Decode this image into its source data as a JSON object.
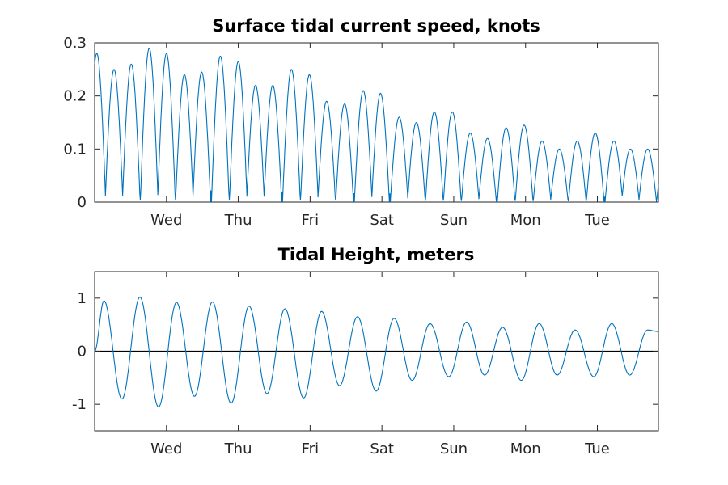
{
  "chart_data": [
    {
      "type": "line",
      "title": "Surface tidal current speed, knots",
      "xlabel": "",
      "ylabel": "",
      "ylim": [
        0,
        0.3
      ],
      "xlim": [
        0,
        7.85
      ],
      "ytick_labels": [
        "0",
        "0.1",
        "0.2",
        "0.3"
      ],
      "ytick_values": [
        0,
        0.1,
        0.2,
        0.3
      ],
      "xtick_labels": [
        "Wed",
        "Thu",
        "Fri",
        "Sat",
        "Sun",
        "Mon",
        "Tue"
      ],
      "xtick_values": [
        1,
        2,
        3,
        4,
        5,
        6,
        7
      ],
      "series_color": "#0072BD",
      "peaks": {
        "x": [
          0.03,
          0.27,
          0.51,
          0.76,
          1.0,
          1.25,
          1.49,
          1.75,
          2.0,
          2.24,
          2.48,
          2.74,
          2.99,
          3.23,
          3.48,
          3.74,
          3.98,
          4.24,
          4.48,
          4.73,
          4.98,
          5.23,
          5.47,
          5.73,
          5.98,
          6.23,
          6.47,
          6.72,
          6.97,
          7.23,
          7.46,
          7.7
        ],
        "y": [
          0.28,
          0.25,
          0.26,
          0.29,
          0.28,
          0.24,
          0.245,
          0.275,
          0.265,
          0.22,
          0.22,
          0.25,
          0.24,
          0.19,
          0.185,
          0.21,
          0.205,
          0.16,
          0.15,
          0.17,
          0.17,
          0.13,
          0.12,
          0.14,
          0.145,
          0.115,
          0.1,
          0.115,
          0.13,
          0.115,
          0.1,
          0.1
        ]
      }
    },
    {
      "type": "line",
      "title": "Tidal Height, meters",
      "xlabel": "",
      "ylabel": "",
      "ylim": [
        -1.5,
        1.5
      ],
      "xlim": [
        0,
        7.85
      ],
      "ytick_labels": [
        "-1",
        "0",
        "1"
      ],
      "ytick_values": [
        -1,
        0,
        1
      ],
      "xtick_labels": [
        "Wed",
        "Thu",
        "Fri",
        "Sat",
        "Sun",
        "Mon",
        "Tue"
      ],
      "xtick_values": [
        1,
        2,
        3,
        4,
        5,
        6,
        7
      ],
      "series_color": "#0072BD",
      "zero_line": true,
      "extrema": {
        "x": [
          0.0,
          0.13,
          0.38,
          0.63,
          0.89,
          1.14,
          1.39,
          1.64,
          1.9,
          2.15,
          2.4,
          2.65,
          2.91,
          3.16,
          3.41,
          3.66,
          3.92,
          4.17,
          4.42,
          4.67,
          4.93,
          5.18,
          5.43,
          5.68,
          5.94,
          6.19,
          6.44,
          6.69,
          6.95,
          7.2,
          7.45,
          7.7,
          7.85
        ],
        "y": [
          0.0,
          0.95,
          -0.9,
          1.02,
          -1.05,
          0.92,
          -0.85,
          0.93,
          -0.98,
          0.85,
          -0.8,
          0.8,
          -0.88,
          0.75,
          -0.65,
          0.65,
          -0.75,
          0.62,
          -0.55,
          0.52,
          -0.48,
          0.55,
          -0.45,
          0.45,
          -0.55,
          0.52,
          -0.45,
          0.4,
          -0.48,
          0.52,
          -0.45,
          0.4,
          0.37
        ]
      }
    }
  ]
}
